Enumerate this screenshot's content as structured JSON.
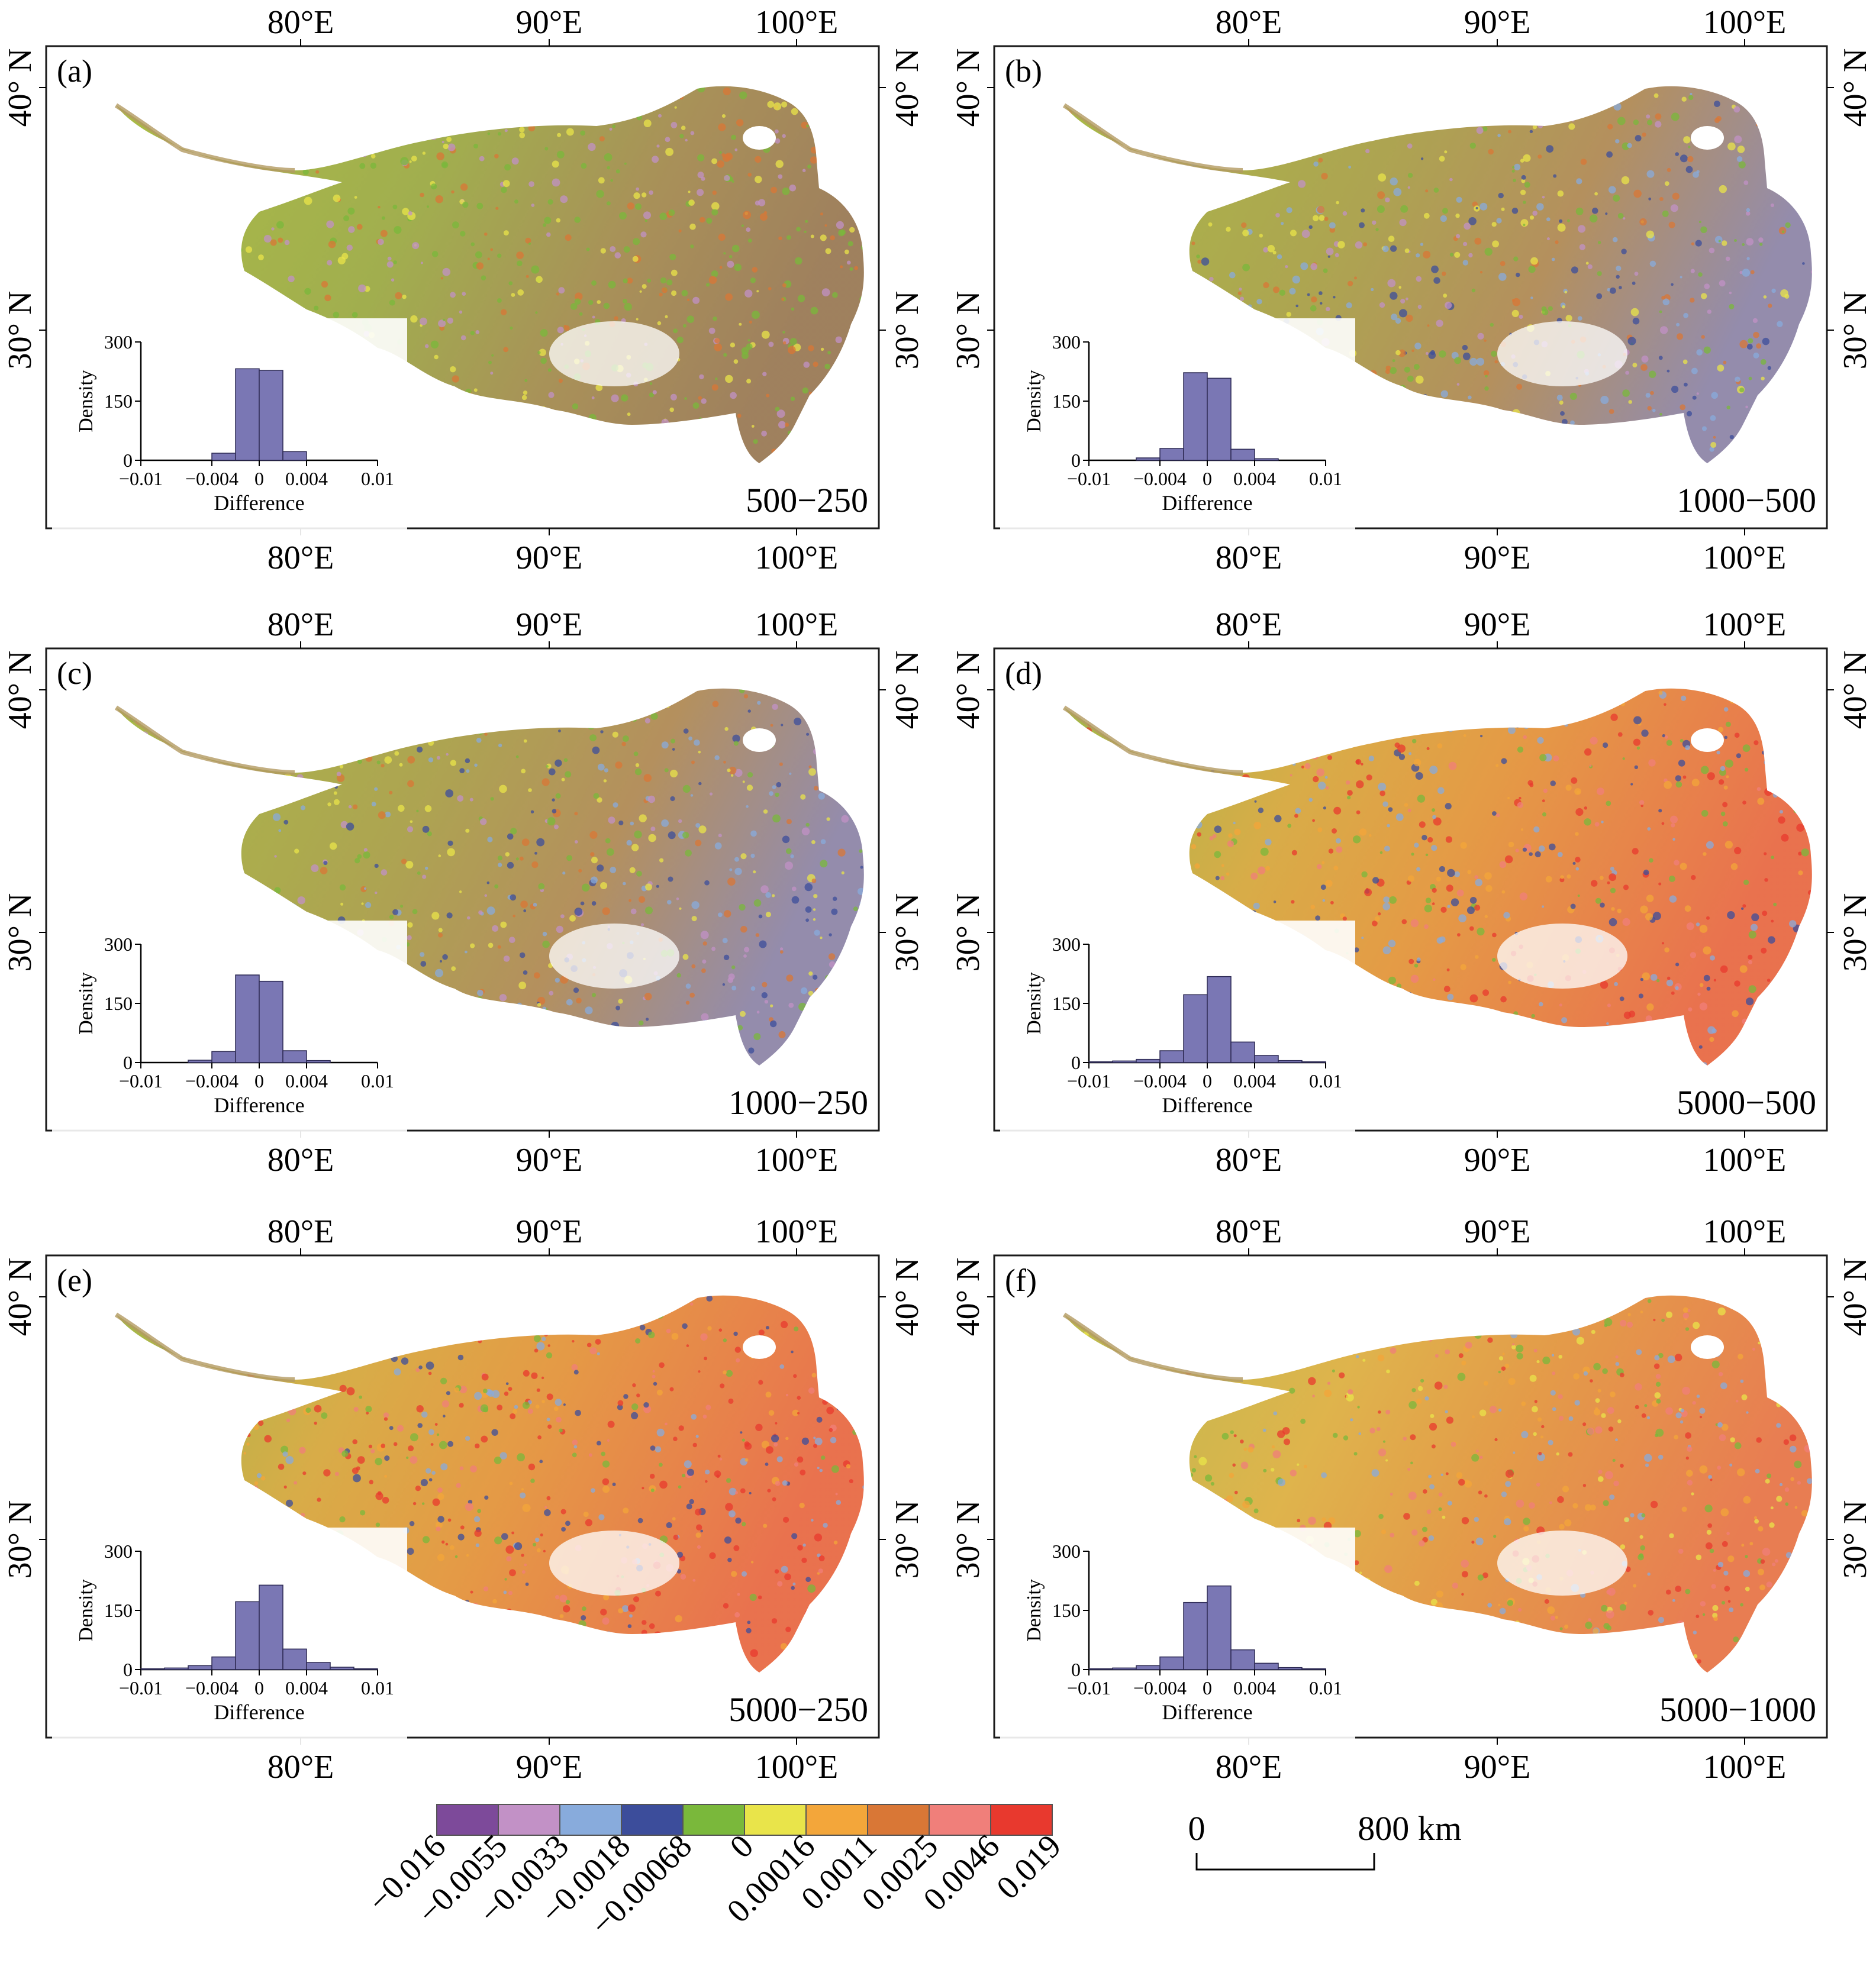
{
  "colors": {
    "background": "#ffffff",
    "frame": "#1a1a1a",
    "histogram_bar": "#7a77b4",
    "histogram_edge": "#2e2b55"
  },
  "axes": {
    "top_lon_labels": [
      "80°E",
      "90°E",
      "100°E"
    ],
    "bottom_lon_labels": [
      "80°E",
      "90°E",
      "100°E"
    ],
    "lat_labels": [
      "40° N",
      "30° N"
    ]
  },
  "panels": [
    {
      "id": "a",
      "label": "(a)",
      "comparison": "500−250",
      "style": "greenish"
    },
    {
      "id": "b",
      "label": "(b)",
      "comparison": "1000−500",
      "style": "mixed"
    },
    {
      "id": "c",
      "label": "(c)",
      "comparison": "1000−250",
      "style": "mixed"
    },
    {
      "id": "d",
      "label": "(d)",
      "comparison": "5000−500",
      "style": "warm"
    },
    {
      "id": "e",
      "label": "(e)",
      "comparison": "5000−250",
      "style": "warm"
    },
    {
      "id": "f",
      "label": "(f)",
      "comparison": "5000−1000",
      "style": "warm-light"
    }
  ],
  "inset_histogram": {
    "ylabel": "Density",
    "xlabel": "Difference",
    "y_ticks": [
      "300",
      "150",
      "0"
    ],
    "x_ticks": [
      "−0.01",
      "−0.004",
      "0",
      "0.004",
      "0.01"
    ]
  },
  "chart_data": [
    {
      "type": "bar",
      "panel": "a",
      "xlabel": "Difference",
      "ylabel": "Density",
      "ylim": [
        0,
        300
      ],
      "xlim": [
        -0.01,
        0.01
      ],
      "bin_edges": [
        -0.01,
        -0.008,
        -0.006,
        -0.004,
        -0.002,
        0,
        0.002,
        0.004,
        0.006,
        0.008,
        0.01
      ],
      "values": [
        0,
        0,
        0,
        18,
        232,
        228,
        22,
        0,
        0,
        0
      ]
    },
    {
      "type": "bar",
      "panel": "b",
      "xlabel": "Difference",
      "ylabel": "Density",
      "ylim": [
        0,
        300
      ],
      "xlim": [
        -0.01,
        0.01
      ],
      "bin_edges": [
        -0.01,
        -0.008,
        -0.006,
        -0.004,
        -0.002,
        0,
        0.002,
        0.004,
        0.006,
        0.008,
        0.01
      ],
      "values": [
        0,
        0,
        6,
        30,
        222,
        208,
        28,
        4,
        0,
        0
      ]
    },
    {
      "type": "bar",
      "panel": "c",
      "xlabel": "Difference",
      "ylabel": "Density",
      "ylim": [
        0,
        300
      ],
      "xlim": [
        -0.01,
        0.01
      ],
      "bin_edges": [
        -0.01,
        -0.008,
        -0.006,
        -0.004,
        -0.002,
        0,
        0.002,
        0.004,
        0.006,
        0.008,
        0.01
      ],
      "values": [
        0,
        0,
        6,
        28,
        222,
        206,
        30,
        5,
        0,
        0
      ]
    },
    {
      "type": "bar",
      "panel": "d",
      "xlabel": "Difference",
      "ylabel": "Density",
      "ylim": [
        0,
        300
      ],
      "xlim": [
        -0.01,
        0.01
      ],
      "bin_edges": [
        -0.01,
        -0.008,
        -0.006,
        -0.004,
        -0.002,
        0,
        0.002,
        0.004,
        0.006,
        0.008,
        0.01
      ],
      "values": [
        2,
        4,
        8,
        30,
        172,
        218,
        52,
        18,
        5,
        2
      ]
    },
    {
      "type": "bar",
      "panel": "e",
      "xlabel": "Difference",
      "ylabel": "Density",
      "ylim": [
        0,
        300
      ],
      "xlim": [
        -0.01,
        0.01
      ],
      "bin_edges": [
        -0.01,
        -0.008,
        -0.006,
        -0.004,
        -0.002,
        0,
        0.002,
        0.004,
        0.006,
        0.008,
        0.01
      ],
      "values": [
        2,
        4,
        10,
        32,
        172,
        214,
        52,
        18,
        6,
        2
      ]
    },
    {
      "type": "bar",
      "panel": "f",
      "xlabel": "Difference",
      "ylabel": "Density",
      "ylim": [
        0,
        300
      ],
      "xlim": [
        -0.01,
        0.01
      ],
      "bin_edges": [
        -0.01,
        -0.008,
        -0.006,
        -0.004,
        -0.002,
        0,
        0.002,
        0.004,
        0.006,
        0.008,
        0.01
      ],
      "values": [
        2,
        4,
        10,
        32,
        170,
        212,
        50,
        16,
        5,
        2
      ]
    }
  ],
  "legend": {
    "swatches": [
      {
        "color": "#7d4a9a",
        "label": "−0.016"
      },
      {
        "color": "#c291c6",
        "label": "−0.0055"
      },
      {
        "color": "#88abdc",
        "label": "−0.0033"
      },
      {
        "color": "#3c4d9b",
        "label": "−0.0018"
      },
      {
        "color": "#7ab83b",
        "label": "−0.00068"
      },
      {
        "color": "#e9e44a",
        "label": "0"
      },
      {
        "color": "#f3a63a",
        "label": "0.00016"
      },
      {
        "color": "#d97736",
        "label": "0.0011"
      },
      {
        "color": "#f07f7a",
        "label": "0.0025"
      },
      {
        "color": "#e8392e",
        "label": "0.0046"
      }
    ],
    "end_label": "0.019"
  },
  "scale_bar": {
    "start": "0",
    "end": "800 km"
  }
}
